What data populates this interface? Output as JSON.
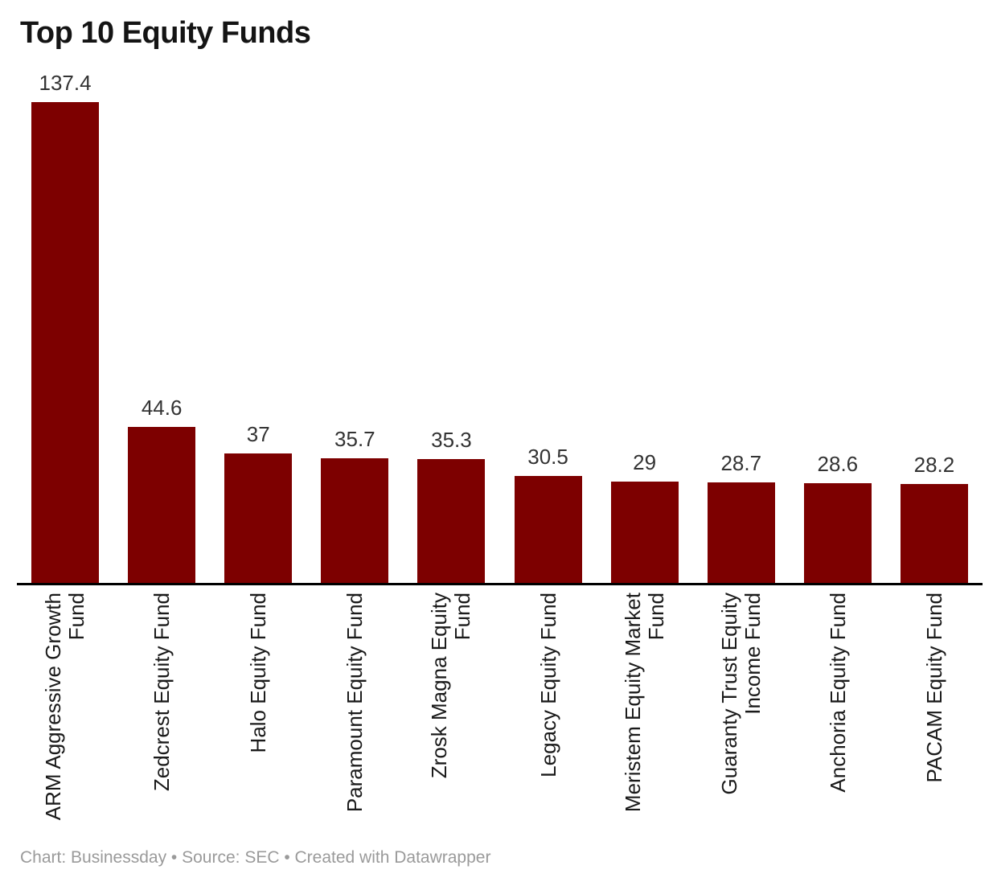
{
  "title": "Top 10 Equity Funds",
  "footer": {
    "text": "Chart: Businessday • Source: SEC • Created with Datawrapper"
  },
  "colors": {
    "bar": "#7d0000",
    "axis_line": "#000000",
    "value_label": "#333333",
    "category_label": "#1a1a1a",
    "footer_text": "#9a9a9a",
    "background": "#ffffff"
  },
  "chart_data": {
    "type": "bar",
    "title": "Top 10 Equity Funds",
    "orientation": "vertical",
    "grid": false,
    "legend": "none",
    "ylim": [
      0,
      137.4
    ],
    "categories": [
      "ARM Aggressive Growth Fund",
      "Zedcrest Equity Fund",
      "Halo Equity Fund",
      "Paramount Equity Fund",
      "Zrosk Magna Equity Fund",
      "Legacy Equity Fund",
      "Meristem Equity Market Fund",
      "Guaranty Trust Equity Income Fund",
      "Anchoria Equity Fund",
      "PACAM Equity Fund"
    ],
    "category_display": [
      "ARM Aggressive Growth\nFund",
      "Zedcrest Equity Fund",
      "Halo Equity Fund",
      "Paramount Equity Fund",
      "Zrosk Magna Equity Fund",
      "Legacy Equity Fund",
      "Meristem Equity Market\nFund",
      "Guaranty Trust Equity\nIncome Fund",
      "Anchoria Equity Fund",
      "PACAM Equity Fund"
    ],
    "values": [
      137.4,
      44.6,
      37,
      35.7,
      35.3,
      30.5,
      29,
      28.7,
      28.6,
      28.2
    ],
    "value_labels": [
      "137.4",
      "44.6",
      "37",
      "35.7",
      "35.3",
      "30.5",
      "29",
      "28.7",
      "28.6",
      "28.2"
    ]
  }
}
